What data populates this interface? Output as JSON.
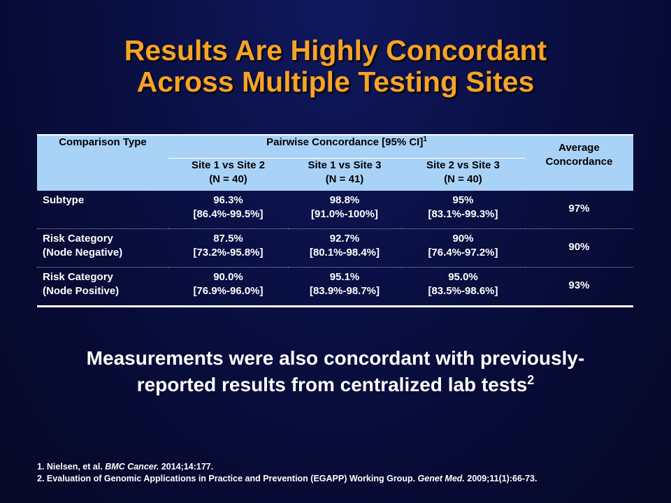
{
  "title": {
    "line1": "Results Are Highly Concordant",
    "line2": "Across Multiple Testing Sites"
  },
  "table": {
    "col_comparison": "Comparison Type",
    "col_pairwise": "Pairwise Concordance [95% CI]",
    "col_pairwise_sup": "1",
    "col_average_line1": "Average",
    "col_average_line2": "Concordance",
    "subcols": [
      {
        "line1": "Site 1 vs Site 2",
        "line2": "(N = 40)"
      },
      {
        "line1": "Site 1 vs Site 3",
        "line2": "(N = 41)"
      },
      {
        "line1": "Site 2 vs Site 3",
        "line2": "(N = 40)"
      }
    ],
    "rows": [
      {
        "label1": "Subtype",
        "label2": "",
        "cells": [
          {
            "value": "96.3%",
            "ci": "[86.4%-99.5%]"
          },
          {
            "value": "98.8%",
            "ci": "[91.0%-100%]"
          },
          {
            "value": "95%",
            "ci": "[83.1%-99.3%]"
          }
        ],
        "average": "97%"
      },
      {
        "label1": "Risk Category",
        "label2": "(Node Negative)",
        "cells": [
          {
            "value": "87.5%",
            "ci": "[73.2%-95.8%]"
          },
          {
            "value": "92.7%",
            "ci": "[80.1%-98.4%]"
          },
          {
            "value": "90%",
            "ci": "[76.4%-97.2%]"
          }
        ],
        "average": "90%"
      },
      {
        "label1": "Risk Category",
        "label2": "(Node Positive)",
        "cells": [
          {
            "value": "90.0%",
            "ci": "[76.9%-96.0%]"
          },
          {
            "value": "95.1%",
            "ci": "[83.9%-98.7%]"
          },
          {
            "value": "95.0%",
            "ci": "[83.5%-98.6%]"
          }
        ],
        "average": "93%"
      }
    ]
  },
  "summary": {
    "line1": "Measurements were also concordant with previously-",
    "line2": "reported results from centralized lab tests",
    "sup": "2"
  },
  "references": [
    {
      "prefix": "1. Nielsen, et al. ",
      "journal": "BMC Cancer.",
      "suffix": " 2014;14:177."
    },
    {
      "prefix": "2. Evaluation of Genomic Applications in Practice and Prevention (EGAPP) Working Group. ",
      "journal": "Genet Med.",
      "suffix": " 2009;11(1):66-73."
    }
  ],
  "colors": {
    "title": "#f7a325",
    "header_bg": "#a9d2f7",
    "background": "#0b1148"
  }
}
